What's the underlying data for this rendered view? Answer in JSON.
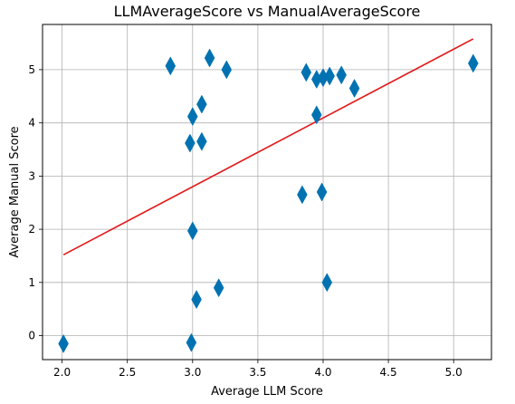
{
  "chart_data": {
    "type": "scatter",
    "title": "LLMAverageScore vs ManualAverageScore",
    "xlabel": "Average LLM Score",
    "ylabel": "Average Manual Score",
    "xlim": [
      1.85,
      5.29
    ],
    "ylim": [
      -0.45,
      5.85
    ],
    "xticks": [
      "2.0",
      "2.5",
      "3.0",
      "3.5",
      "4.0",
      "4.5",
      "5.0"
    ],
    "yticks": [
      "0",
      "1",
      "2",
      "3",
      "4",
      "5"
    ],
    "grid": true,
    "marker": "diamond",
    "point_color": "#1f77b4",
    "marker_color": "#0072b2",
    "trend_color": "#e31a1c",
    "points": [
      {
        "x": 2.01,
        "y": -0.15
      },
      {
        "x": 2.83,
        "y": 5.07
      },
      {
        "x": 2.98,
        "y": 3.62
      },
      {
        "x": 3.0,
        "y": 4.12
      },
      {
        "x": 3.07,
        "y": 3.65
      },
      {
        "x": 3.07,
        "y": 4.35
      },
      {
        "x": 3.13,
        "y": 5.22
      },
      {
        "x": 3.26,
        "y": 5.0
      },
      {
        "x": 3.0,
        "y": 1.97
      },
      {
        "x": 3.03,
        "y": 0.68
      },
      {
        "x": 2.99,
        "y": -0.13
      },
      {
        "x": 3.2,
        "y": 0.9
      },
      {
        "x": 3.84,
        "y": 2.65
      },
      {
        "x": 3.87,
        "y": 4.95
      },
      {
        "x": 3.95,
        "y": 4.15
      },
      {
        "x": 3.95,
        "y": 4.82
      },
      {
        "x": 4.0,
        "y": 4.85
      },
      {
        "x": 4.05,
        "y": 4.88
      },
      {
        "x": 4.14,
        "y": 4.9
      },
      {
        "x": 4.24,
        "y": 4.65
      },
      {
        "x": 3.99,
        "y": 2.7
      },
      {
        "x": 4.03,
        "y": 1.0
      },
      {
        "x": 5.15,
        "y": 5.12
      }
    ],
    "trendline": {
      "x": [
        2.01,
        5.15
      ],
      "y": [
        1.52,
        5.58
      ]
    }
  }
}
